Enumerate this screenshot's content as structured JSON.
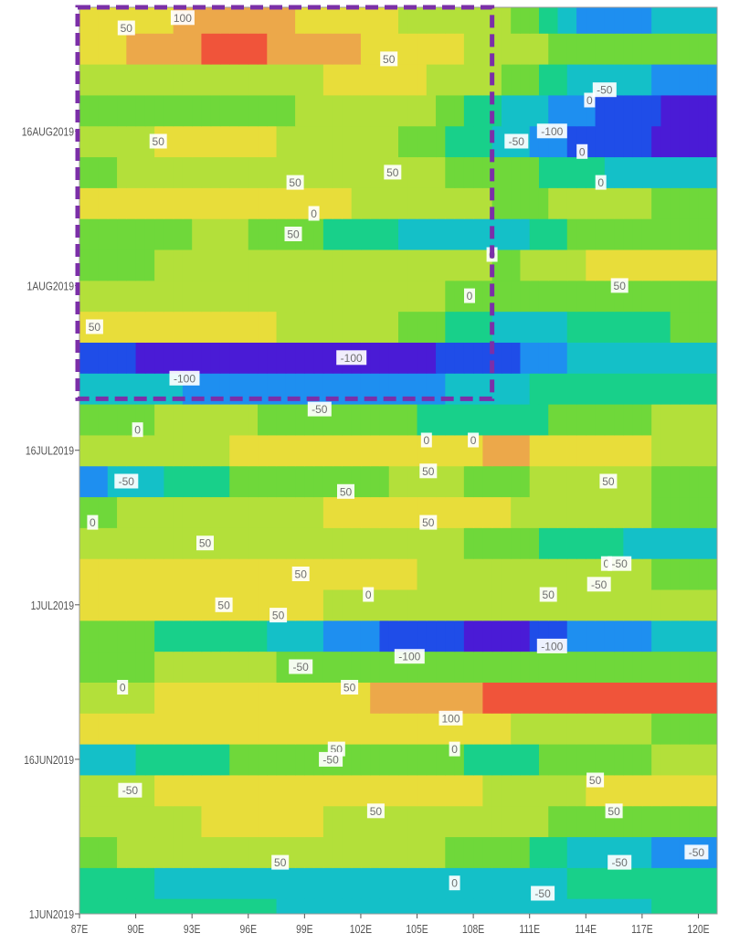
{
  "chart_data": {
    "type": "heatmap",
    "title": "",
    "xlabel": "",
    "ylabel": "",
    "x_axis": {
      "ticks": [
        "87E",
        "90E",
        "93E",
        "96E",
        "99E",
        "102E",
        "105E",
        "108E",
        "111E",
        "114E",
        "117E",
        "120E"
      ],
      "range_deg_east": [
        87,
        121
      ]
    },
    "y_axis": {
      "ticks": [
        "1JUN2019",
        "16JUN2019",
        "1JUL2019",
        "16JUL2019",
        "1AUG2019",
        "16AUG2019"
      ],
      "range": [
        "1JUN2019",
        "28AUG2019"
      ]
    },
    "contour_levels": [
      -100,
      -50,
      0,
      50,
      100
    ],
    "color_scale": [
      {
        "level": "< -100",
        "color": "#4a1bd6"
      },
      {
        "level": "-100 to -75",
        "color": "#1f4de8"
      },
      {
        "level": "-75 to -50",
        "color": "#1e8ff0"
      },
      {
        "level": "-50 to -25",
        "color": "#14c0c8"
      },
      {
        "level": "-25 to 0",
        "color": "#18d08a"
      },
      {
        "level": "0 to 25",
        "color": "#6fd83a"
      },
      {
        "level": "25 to 50",
        "color": "#b3e03a"
      },
      {
        "level": "50 to 75",
        "color": "#e8dd3a"
      },
      {
        "level": "75 to 100",
        "color": "#eca84a"
      },
      {
        "level": "> 100",
        "color": "#f0543a"
      }
    ],
    "bands": [
      {
        "date": "27AUG2019",
        "profile": [
          [
            87,
            50
          ],
          [
            95,
            90
          ],
          [
            105,
            45
          ],
          [
            110,
            30
          ],
          [
            114,
            -60
          ],
          [
            121,
            -40
          ]
        ]
      },
      {
        "date": "24AUG2019",
        "profile": [
          [
            87,
            60
          ],
          [
            95,
            110
          ],
          [
            105,
            60
          ],
          [
            110,
            40
          ],
          [
            114,
            10
          ],
          [
            121,
            20
          ]
        ]
      },
      {
        "date": "21AUG2019",
        "profile": [
          [
            87,
            30
          ],
          [
            95,
            45
          ],
          [
            105,
            55
          ],
          [
            110,
            20
          ],
          [
            114,
            -40
          ],
          [
            121,
            -60
          ]
        ]
      },
      {
        "date": "18AUG2019",
        "profile": [
          [
            87,
            10
          ],
          [
            95,
            20
          ],
          [
            105,
            35
          ],
          [
            110,
            -30
          ],
          [
            114,
            -70
          ],
          [
            121,
            -120
          ]
        ]
      },
      {
        "date": "15AUG2019",
        "profile": [
          [
            87,
            40
          ],
          [
            95,
            60
          ],
          [
            105,
            20
          ],
          [
            110,
            -40
          ],
          [
            114,
            -90
          ],
          [
            121,
            -110
          ]
        ]
      },
      {
        "date": "12AUG2019",
        "profile": [
          [
            87,
            20
          ],
          [
            95,
            40
          ],
          [
            105,
            30
          ],
          [
            110,
            10
          ],
          [
            114,
            -20
          ],
          [
            121,
            -50
          ]
        ]
      },
      {
        "date": "9AUG2019",
        "profile": [
          [
            87,
            50
          ],
          [
            95,
            70
          ],
          [
            105,
            40
          ],
          [
            110,
            20
          ],
          [
            114,
            30
          ],
          [
            121,
            20
          ]
        ]
      },
      {
        "date": "6AUG2019",
        "profile": [
          [
            87,
            10
          ],
          [
            95,
            30
          ],
          [
            105,
            -30
          ],
          [
            110,
            -40
          ],
          [
            114,
            10
          ],
          [
            121,
            0
          ]
        ]
      },
      {
        "date": "3AUG2019",
        "profile": [
          [
            87,
            20
          ],
          [
            95,
            30
          ],
          [
            105,
            40
          ],
          [
            110,
            20
          ],
          [
            114,
            50
          ],
          [
            121,
            60
          ]
        ]
      },
      {
        "date": "31JUL2019",
        "profile": [
          [
            87,
            40
          ],
          [
            95,
            45
          ],
          [
            105,
            30
          ],
          [
            110,
            10
          ],
          [
            114,
            0
          ],
          [
            121,
            10
          ]
        ]
      },
      {
        "date": "28JUL2019",
        "profile": [
          [
            87,
            50
          ],
          [
            95,
            60
          ],
          [
            105,
            20
          ],
          [
            110,
            -40
          ],
          [
            114,
            -20
          ],
          [
            121,
            10
          ]
        ]
      },
      {
        "date": "25JUL2019",
        "profile": [
          [
            87,
            -90
          ],
          [
            95,
            -115
          ],
          [
            105,
            -105
          ],
          [
            110,
            -80
          ],
          [
            114,
            -40
          ],
          [
            121,
            -30
          ]
        ]
      },
      {
        "date": "22JUL2019",
        "profile": [
          [
            87,
            -40
          ],
          [
            95,
            -55
          ],
          [
            105,
            -60
          ],
          [
            110,
            -30
          ],
          [
            114,
            -10
          ],
          [
            121,
            -20
          ]
        ]
      },
      {
        "date": "19JUL2019",
        "profile": [
          [
            87,
            20
          ],
          [
            95,
            30
          ],
          [
            105,
            0
          ],
          [
            110,
            -20
          ],
          [
            114,
            20
          ],
          [
            121,
            30
          ]
        ]
      },
      {
        "date": "16JUL2019",
        "profile": [
          [
            87,
            40
          ],
          [
            95,
            50
          ],
          [
            105,
            60
          ],
          [
            110,
            80
          ],
          [
            114,
            60
          ],
          [
            121,
            40
          ]
        ]
      },
      {
        "date": "13JUL2019",
        "profile": [
          [
            87,
            -60
          ],
          [
            95,
            0
          ],
          [
            105,
            30
          ],
          [
            110,
            20
          ],
          [
            114,
            40
          ],
          [
            121,
            10
          ]
        ]
      },
      {
        "date": "10JUL2019",
        "profile": [
          [
            87,
            20
          ],
          [
            95,
            40
          ],
          [
            105,
            60
          ],
          [
            110,
            50
          ],
          [
            114,
            30
          ],
          [
            121,
            20
          ]
        ]
      },
      {
        "date": "7JUL2019",
        "profile": [
          [
            87,
            30
          ],
          [
            95,
            50
          ],
          [
            105,
            40
          ],
          [
            110,
            10
          ],
          [
            114,
            -20
          ],
          [
            121,
            -40
          ]
        ]
      },
      {
        "date": "4JUL2019",
        "profile": [
          [
            87,
            60
          ],
          [
            95,
            70
          ],
          [
            105,
            50
          ],
          [
            110,
            40
          ],
          [
            114,
            30
          ],
          [
            121,
            20
          ]
        ]
      },
      {
        "date": "1JUL2019",
        "profile": [
          [
            87,
            50
          ],
          [
            95,
            60
          ],
          [
            105,
            40
          ],
          [
            110,
            30
          ],
          [
            114,
            50
          ],
          [
            121,
            40
          ]
        ]
      },
      {
        "date": "28JUN2019",
        "profile": [
          [
            87,
            10
          ],
          [
            95,
            -10
          ],
          [
            105,
            -90
          ],
          [
            110,
            -110
          ],
          [
            114,
            -60
          ],
          [
            121,
            -40
          ]
        ]
      },
      {
        "date": "25JUN2019",
        "profile": [
          [
            87,
            20
          ],
          [
            95,
            30
          ],
          [
            105,
            10
          ],
          [
            110,
            0
          ],
          [
            114,
            10
          ],
          [
            121,
            20
          ]
        ]
      },
      {
        "date": "22JUN2019",
        "profile": [
          [
            87,
            40
          ],
          [
            95,
            60
          ],
          [
            105,
            80
          ],
          [
            110,
            110
          ],
          [
            114,
            130
          ],
          [
            121,
            110
          ]
        ]
      },
      {
        "date": "19JUN2019",
        "profile": [
          [
            87,
            50
          ],
          [
            95,
            70
          ],
          [
            105,
            60
          ],
          [
            110,
            50
          ],
          [
            114,
            30
          ],
          [
            121,
            20
          ]
        ]
      },
      {
        "date": "16JUN2019",
        "profile": [
          [
            87,
            -40
          ],
          [
            95,
            0
          ],
          [
            105,
            10
          ],
          [
            110,
            -10
          ],
          [
            114,
            20
          ],
          [
            121,
            30
          ]
        ]
      },
      {
        "date": "13JUN2019",
        "profile": [
          [
            87,
            40
          ],
          [
            95,
            60
          ],
          [
            105,
            70
          ],
          [
            110,
            40
          ],
          [
            114,
            50
          ],
          [
            121,
            60
          ]
        ]
      },
      {
        "date": "10JUN2019",
        "profile": [
          [
            87,
            30
          ],
          [
            95,
            55
          ],
          [
            105,
            45
          ],
          [
            110,
            30
          ],
          [
            114,
            20
          ],
          [
            121,
            10
          ]
        ]
      },
      {
        "date": "7JUN2019",
        "profile": [
          [
            87,
            20
          ],
          [
            95,
            40
          ],
          [
            105,
            30
          ],
          [
            110,
            10
          ],
          [
            114,
            -40
          ],
          [
            121,
            -60
          ]
        ]
      },
      {
        "date": "4JUN2019",
        "profile": [
          [
            87,
            -20
          ],
          [
            95,
            -30
          ],
          [
            105,
            -50
          ],
          [
            110,
            -40
          ],
          [
            114,
            -20
          ],
          [
            121,
            -10
          ]
        ]
      },
      {
        "date": "1JUN2019",
        "profile": [
          [
            87,
            -10
          ],
          [
            95,
            -20
          ],
          [
            105,
            -40
          ],
          [
            110,
            -50
          ],
          [
            114,
            -30
          ],
          [
            121,
            -20
          ]
        ]
      }
    ],
    "contour_labels": [
      {
        "text": "100",
        "lon": 92.5,
        "date": "27AUG2019"
      },
      {
        "text": "50",
        "lon": 89.5,
        "date": "26AUG2019"
      },
      {
        "text": "50",
        "lon": 103.5,
        "date": "23AUG2019"
      },
      {
        "text": "-50",
        "lon": 115.0,
        "date": "20AUG2019"
      },
      {
        "text": "0",
        "lon": 114.2,
        "date": "19AUG2019"
      },
      {
        "text": "-50",
        "lon": 110.3,
        "date": "15AUG2019"
      },
      {
        "text": "-100",
        "lon": 112.2,
        "date": "16AUG2019"
      },
      {
        "text": "0",
        "lon": 113.8,
        "date": "14AUG2019"
      },
      {
        "text": "50",
        "lon": 91.2,
        "date": "15AUG2019"
      },
      {
        "text": "50",
        "lon": 98.5,
        "date": "11AUG2019"
      },
      {
        "text": "50",
        "lon": 103.7,
        "date": "12AUG2019"
      },
      {
        "text": "0",
        "lon": 114.8,
        "date": "11AUG2019"
      },
      {
        "text": "0",
        "lon": 99.5,
        "date": "8AUG2019"
      },
      {
        "text": "50",
        "lon": 98.4,
        "date": "6AUG2019"
      },
      {
        "text": "0",
        "lon": 109.0,
        "date": "4AUG2019"
      },
      {
        "text": "50",
        "lon": 115.8,
        "date": "1AUG2019"
      },
      {
        "text": "0",
        "lon": 107.8,
        "date": "31JUL2019"
      },
      {
        "text": "50",
        "lon": 87.8,
        "date": "28JUL2019"
      },
      {
        "text": "-100",
        "lon": 101.5,
        "date": "25JUL2019"
      },
      {
        "text": "-100",
        "lon": 92.6,
        "date": "23JUL2019"
      },
      {
        "text": "-50",
        "lon": 99.8,
        "date": "20JUL2019"
      },
      {
        "text": "0",
        "lon": 90.1,
        "date": "18JUL2019"
      },
      {
        "text": "0",
        "lon": 105.5,
        "date": "17JUL2019"
      },
      {
        "text": "0",
        "lon": 108.0,
        "date": "17JUL2019"
      },
      {
        "text": "50",
        "lon": 105.6,
        "date": "14JUL2019"
      },
      {
        "text": "50",
        "lon": 115.2,
        "date": "13JUL2019"
      },
      {
        "text": "-50",
        "lon": 89.5,
        "date": "13JUL2019"
      },
      {
        "text": "50",
        "lon": 101.2,
        "date": "12JUL2019"
      },
      {
        "text": "0",
        "lon": 87.7,
        "date": "9JUL2019"
      },
      {
        "text": "50",
        "lon": 105.6,
        "date": "9JUL2019"
      },
      {
        "text": "50",
        "lon": 93.7,
        "date": "7JUL2019"
      },
      {
        "text": "0",
        "lon": 115.1,
        "date": "5JUL2019"
      },
      {
        "text": "-50",
        "lon": 115.8,
        "date": "5JUL2019"
      },
      {
        "text": "50",
        "lon": 98.8,
        "date": "4JUL2019"
      },
      {
        "text": "-50",
        "lon": 114.7,
        "date": "3JUL2019"
      },
      {
        "text": "0",
        "lon": 102.4,
        "date": "2JUL2019"
      },
      {
        "text": "50",
        "lon": 112.0,
        "date": "2JUL2019"
      },
      {
        "text": "50",
        "lon": 94.7,
        "date": "1JUL2019"
      },
      {
        "text": "50",
        "lon": 97.6,
        "date": "30JUN2019"
      },
      {
        "text": "-100",
        "lon": 104.6,
        "date": "26JUN2019"
      },
      {
        "text": "-100",
        "lon": 112.2,
        "date": "27JUN2019"
      },
      {
        "text": "-50",
        "lon": 98.8,
        "date": "25JUN2019"
      },
      {
        "text": "0",
        "lon": 89.3,
        "date": "23JUN2019"
      },
      {
        "text": "50",
        "lon": 101.4,
        "date": "23JUN2019"
      },
      {
        "text": "100",
        "lon": 106.8,
        "date": "20JUN2019"
      },
      {
        "text": "50",
        "lon": 100.7,
        "date": "17JUN2019"
      },
      {
        "text": "0",
        "lon": 107.0,
        "date": "17JUN2019"
      },
      {
        "text": "-50",
        "lon": 100.4,
        "date": "16JUN2019"
      },
      {
        "text": "-50",
        "lon": 89.7,
        "date": "13JUN2019"
      },
      {
        "text": "50",
        "lon": 114.5,
        "date": "14JUN2019"
      },
      {
        "text": "50",
        "lon": 102.8,
        "date": "11JUN2019"
      },
      {
        "text": "50",
        "lon": 115.5,
        "date": "11JUN2019"
      },
      {
        "text": "50",
        "lon": 97.7,
        "date": "6JUN2019"
      },
      {
        "text": "-50",
        "lon": 119.9,
        "date": "7JUN2019"
      },
      {
        "text": "-50",
        "lon": 115.8,
        "date": "6JUN2019"
      },
      {
        "text": "0",
        "lon": 107.0,
        "date": "4JUN2019"
      },
      {
        "text": "-50",
        "lon": 111.7,
        "date": "3JUN2019"
      }
    ],
    "highlight_box": {
      "color": "#7b2fa8",
      "lon_range": [
        87,
        109
      ],
      "date_range": [
        "21JUL2019",
        "28AUG2019"
      ],
      "style": "dashed"
    },
    "grid": false,
    "legend": "none"
  }
}
